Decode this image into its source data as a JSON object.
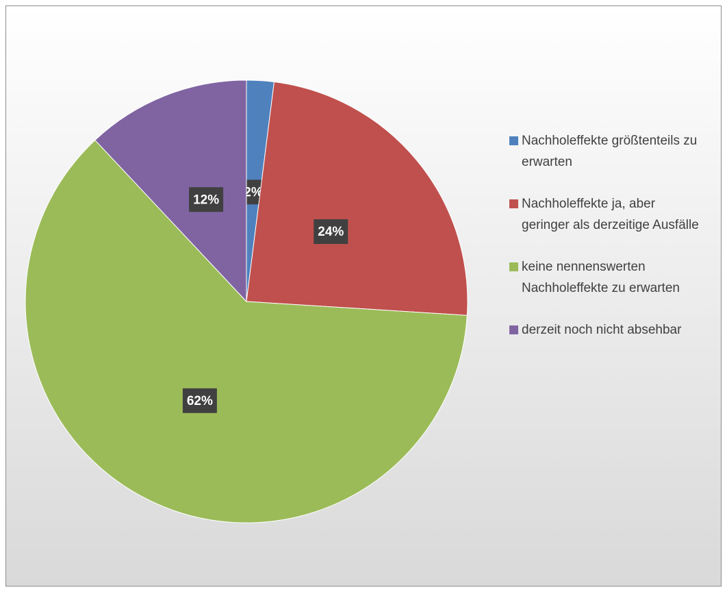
{
  "chart_data": {
    "type": "pie",
    "categories": [
      "Nachholeffekte größtenteils zu erwarten",
      "Nachholeffekte ja, aber geringer als derzeitige Ausfälle",
      "keine nennenswerten Nachholeffekte zu erwarten",
      "derzeit noch nicht absehbar"
    ],
    "values": [
      2,
      24,
      62,
      12
    ],
    "value_labels": [
      "2%",
      "24%",
      "62%",
      "12%"
    ],
    "colors": [
      "#4f81bd",
      "#c0504d",
      "#9bbb59",
      "#8064a2"
    ],
    "legend": "right"
  }
}
